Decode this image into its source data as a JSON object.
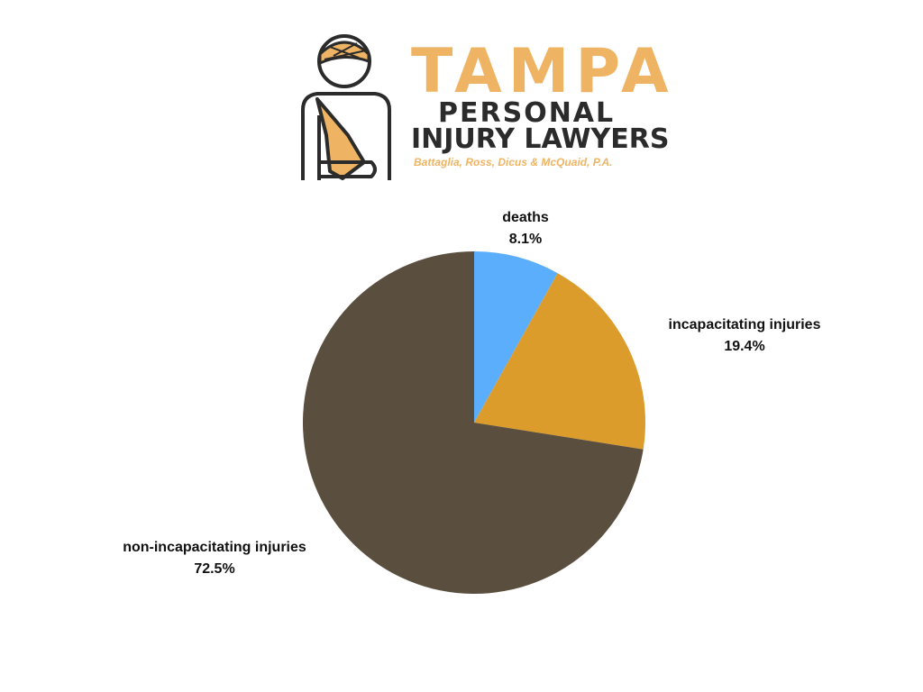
{
  "logo": {
    "title": "TAMPA",
    "line1": "PERSONAL",
    "line2": "INJURY LAWYERS",
    "tagline": "Battaglia, Ross, Dicus & McQuaid, P.A.",
    "icon": "injured-person-with-sling-icon",
    "accent_color": "#efb463",
    "dark_color": "#2b2b2b"
  },
  "chart_data": {
    "type": "pie",
    "title": "",
    "start_angle": "12 o'clock",
    "direction": "clockwise",
    "slices": [
      {
        "label": "deaths",
        "value": 8.1,
        "value_label": "8.1%",
        "color": "#5aaefc"
      },
      {
        "label": "incapacitating injuries",
        "value": 19.4,
        "value_label": "19.4%",
        "color": "#dc9c2b"
      },
      {
        "label": "non-incapacitating injuries",
        "value": 72.5,
        "value_label": "72.5%",
        "color": "#5a4e3e"
      }
    ]
  }
}
